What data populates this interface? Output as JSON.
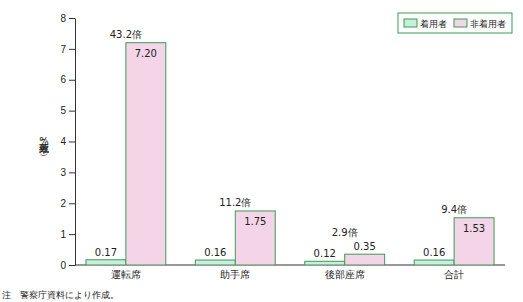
{
  "chart_data": {
    "type": "bar",
    "categories": [
      "運転席",
      "助手席",
      "後部座席",
      "合計"
    ],
    "series": [
      {
        "name": "着用者",
        "color": "#c8eedf",
        "values": [
          0.17,
          0.16,
          0.12,
          0.16
        ],
        "value_labels": [
          "0.17",
          "0.16",
          "0.12",
          "0.16"
        ]
      },
      {
        "name": "非着用者",
        "color": "#f4d5e8",
        "values": [
          7.2,
          1.75,
          0.35,
          1.53
        ],
        "value_labels": [
          "7.20",
          "1.75",
          "0.35",
          "1.53"
        ]
      }
    ],
    "annotations": [
      "43.2倍",
      "11.2倍",
      "2.9倍",
      "9.4倍"
    ],
    "y_label": "致死率（%）",
    "footnote": "注　警察庁資料により作成。",
    "ylim": [
      0,
      8
    ],
    "yticks": [
      0,
      1,
      2,
      3,
      4,
      5,
      6,
      7,
      8
    ],
    "data_labels": true,
    "legend": "top-right",
    "grid": false
  }
}
